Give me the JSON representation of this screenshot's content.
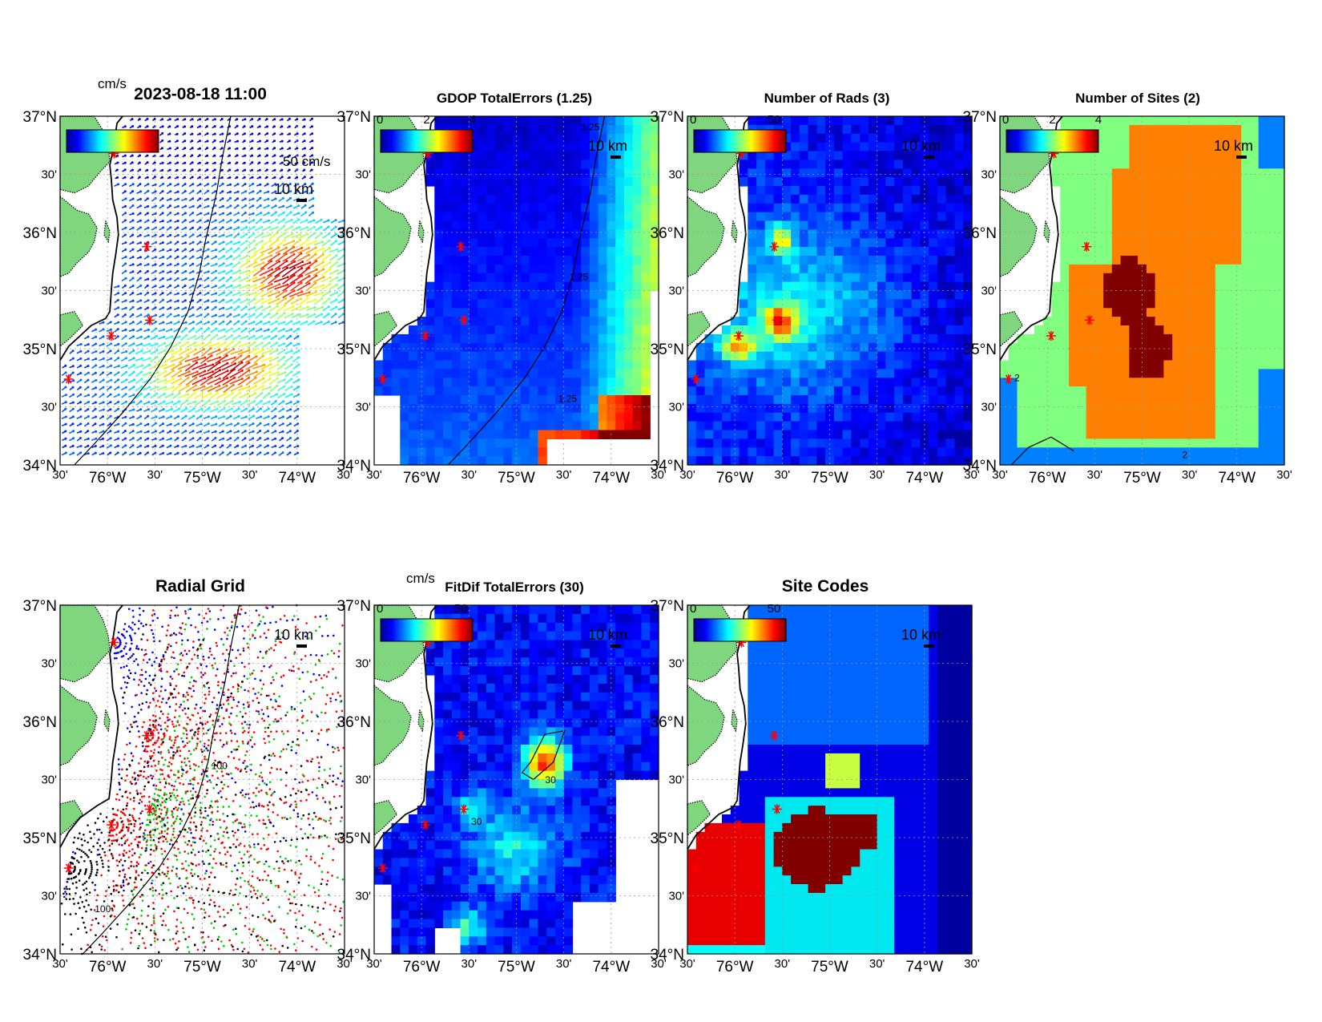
{
  "figure": {
    "axes": {
      "lat_ticks": [
        "37°N",
        "30'",
        "36°N",
        "30'",
        "35°N",
        "30'",
        "34°N"
      ],
      "lon_ticks": [
        "30'",
        "76°W",
        "30'",
        "75°W",
        "30'",
        "74°W",
        "30'"
      ]
    },
    "scale_bar": "10 km",
    "colors": {
      "land": "#7fd67f",
      "sea_low": "#0000c8",
      "site_marker": "#ff0000",
      "panel_border": "#000000"
    }
  },
  "chart_data": [
    {
      "type": "heatmap",
      "panel": "velocity",
      "title": "2023-08-18 11:00",
      "colorbar_unit": "cm/s",
      "vector_scale_label": "50 cm/s",
      "overlapping_title_text": "",
      "xlabel": "",
      "ylabel": "",
      "xlim": [
        -76.5,
        -73.5
      ],
      "ylim": [
        34.0,
        37.0
      ],
      "lon_ticks": [
        -76.5,
        -76.0,
        -75.5,
        -75.0,
        -74.5,
        -74.0,
        -73.5
      ],
      "lat_ticks": [
        37.0,
        36.5,
        36.0,
        35.5,
        35.0,
        34.5,
        34.0
      ],
      "sites": [
        [
          -76.02,
          36.75
        ],
        [
          -75.52,
          35.87
        ],
        [
          -75.5,
          35.26
        ],
        [
          -75.95,
          35.2
        ],
        [
          -76.45,
          34.79
        ]
      ]
    },
    {
      "type": "heatmap",
      "panel": "gdop",
      "title": "GDOP TotalErrors (1.25)",
      "colorbar_ticks": [
        "0",
        "2",
        "4"
      ],
      "contour_labels": [
        "1.25",
        "1.25",
        "1.25",
        "1.25",
        "1.25"
      ],
      "xlim": [
        -76.5,
        -73.5
      ],
      "ylim": [
        34.0,
        37.0
      ]
    },
    {
      "type": "heatmap",
      "panel": "nrads",
      "title": "Number of Rads (3)",
      "colorbar_ticks": [
        "0",
        "50"
      ],
      "xlim": [
        -76.5,
        -73.5
      ],
      "ylim": [
        34.0,
        37.0
      ]
    },
    {
      "type": "heatmap",
      "panel": "nsites",
      "title": "Number of Sites (2)",
      "colorbar_ticks": [
        "0",
        "2",
        "4"
      ],
      "contour_labels": [
        "2",
        "2",
        "2",
        "2",
        "2"
      ],
      "xlim": [
        -76.5,
        -73.5
      ],
      "ylim": [
        34.0,
        37.0
      ]
    },
    {
      "type": "scatter",
      "panel": "radgrid",
      "title": "Radial Grid",
      "contour_labels": [
        "100",
        "100"
      ],
      "series_colors": [
        "#0000ff",
        "#ff0000",
        "#00cc00",
        "#ff0000",
        "#000000"
      ],
      "xlim": [
        -76.5,
        -73.5
      ],
      "ylim": [
        34.0,
        37.0
      ]
    },
    {
      "type": "heatmap",
      "panel": "fitdif",
      "title": "FitDif TotalErrors (30)",
      "colorbar_unit": "cm/s",
      "colorbar_ticks": [
        "0",
        "50"
      ],
      "contour_labels": [
        "30",
        "30",
        "30",
        "30"
      ],
      "xlim": [
        -76.5,
        -73.5
      ],
      "ylim": [
        34.0,
        37.0
      ]
    },
    {
      "type": "heatmap",
      "panel": "sitecodes",
      "title": "Site Codes",
      "colorbar_ticks": [
        "0",
        "50"
      ],
      "xlim": [
        -76.5,
        -73.5
      ],
      "ylim": [
        34.0,
        37.0
      ]
    }
  ]
}
